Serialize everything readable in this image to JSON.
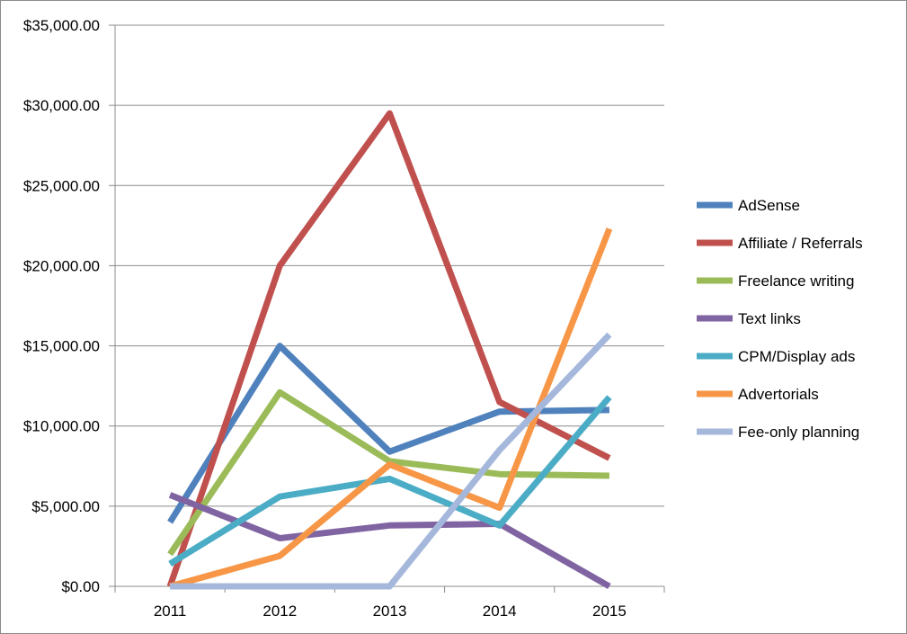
{
  "chart_data": {
    "type": "line",
    "title": "",
    "xlabel": "",
    "ylabel": "",
    "x": [
      "2011",
      "2012",
      "2013",
      "2014",
      "2015"
    ],
    "ylim": [
      0,
      35000
    ],
    "y_ticks": [
      "$0.00",
      "$5,000.00",
      "$10,000.00",
      "$15,000.00",
      "$20,000.00",
      "$25,000.00",
      "$30,000.00",
      "$35,000.00"
    ],
    "grid": true,
    "legend_position": "right",
    "series": [
      {
        "name": "AdSense",
        "color": "#4f81bd",
        "values": [
          4000,
          15000,
          8400,
          10900,
          11000
        ]
      },
      {
        "name": "Affiliate / Referrals",
        "color": "#c0504d",
        "values": [
          0,
          20000,
          29500,
          11500,
          8000
        ]
      },
      {
        "name": "Freelance writing",
        "color": "#9bbb59",
        "values": [
          2000,
          12100,
          7800,
          7000,
          6900
        ]
      },
      {
        "name": "Text links",
        "color": "#8064a2",
        "values": [
          5700,
          3000,
          3800,
          3900,
          0
        ]
      },
      {
        "name": "CPM/Display ads",
        "color": "#4bacc6",
        "values": [
          1400,
          5600,
          6700,
          3800,
          11800
        ]
      },
      {
        "name": "Advertorials",
        "color": "#f79646",
        "values": [
          0,
          1900,
          7600,
          4900,
          22300
        ]
      },
      {
        "name": "Fee-only planning",
        "color": "#a5b8dc",
        "values": [
          0,
          0,
          0,
          8500,
          15700
        ]
      }
    ]
  }
}
